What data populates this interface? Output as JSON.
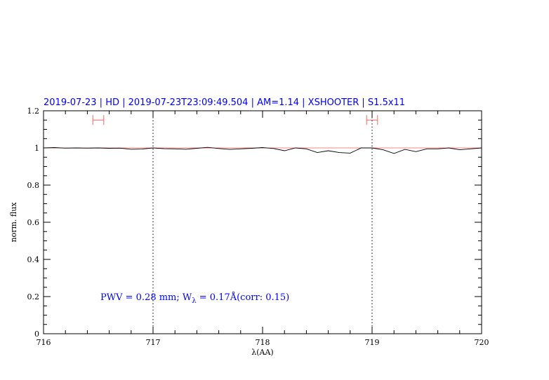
{
  "chart_data": {
    "type": "line",
    "title": "2019-07-23 | HD | 2019-07-23T23:09:49.504 | AM=1.14 | XSHOOTER | S1.5x11",
    "xlabel": "λ(AA)",
    "ylabel": "norm. flux",
    "xlim": [
      716,
      720
    ],
    "ylim": [
      0,
      1.2
    ],
    "x_ticks": [
      716,
      717,
      718,
      719,
      720
    ],
    "y_ticks": [
      0,
      0.2,
      0.4,
      0.6,
      0.8,
      1,
      1.2
    ],
    "y_tick_labels": [
      "0",
      "0.2",
      "0.4",
      "0.6",
      "0.8",
      "1",
      "1.2"
    ],
    "grid": false,
    "vertical_markers": [
      717,
      719
    ],
    "reference_line": 1.0,
    "annotation": {
      "prefix": "PWV  =  0.28  mm;  W",
      "subscript": "λ",
      "suffix": "  =  0.17Å(corr:  0.15)"
    },
    "error_bars": [
      {
        "x": 716.5,
        "xerr": 0.05,
        "y": 1.15
      },
      {
        "x": 719.0,
        "xerr": 0.05,
        "y": 1.15
      }
    ],
    "series": [
      {
        "x": [
          716.0,
          716.1,
          716.2,
          716.3,
          716.4,
          716.5,
          716.6,
          716.7,
          716.8,
          716.9,
          717.0,
          717.1,
          717.2,
          717.3,
          717.4,
          717.5,
          717.6,
          717.7,
          717.8,
          717.9,
          718.0,
          718.1,
          718.2,
          718.3,
          718.4,
          718.5,
          718.6,
          718.7,
          718.8,
          718.9,
          719.0,
          719.1,
          719.2,
          719.3,
          719.4,
          719.5,
          719.6,
          719.7,
          719.8,
          719.9,
          720.0
        ],
        "y": [
          1.0,
          1.002,
          0.999,
          1.0,
          0.999,
          1.0,
          0.998,
          0.999,
          0.993,
          0.994,
          1.0,
          0.996,
          0.995,
          0.993,
          0.998,
          1.003,
          0.997,
          0.992,
          0.995,
          0.998,
          1.002,
          0.997,
          0.985,
          1.0,
          0.995,
          0.975,
          0.985,
          0.975,
          0.972,
          1.0,
          1.0,
          0.99,
          0.97,
          0.992,
          0.98,
          0.995,
          0.995,
          1.0,
          0.99,
          0.995,
          1.0
        ]
      }
    ],
    "colors": {
      "title": "#0000ff",
      "line": "#000000",
      "reference": "#ff8080",
      "error_bars": "#ff6060",
      "annotation": "#0000ff"
    }
  }
}
